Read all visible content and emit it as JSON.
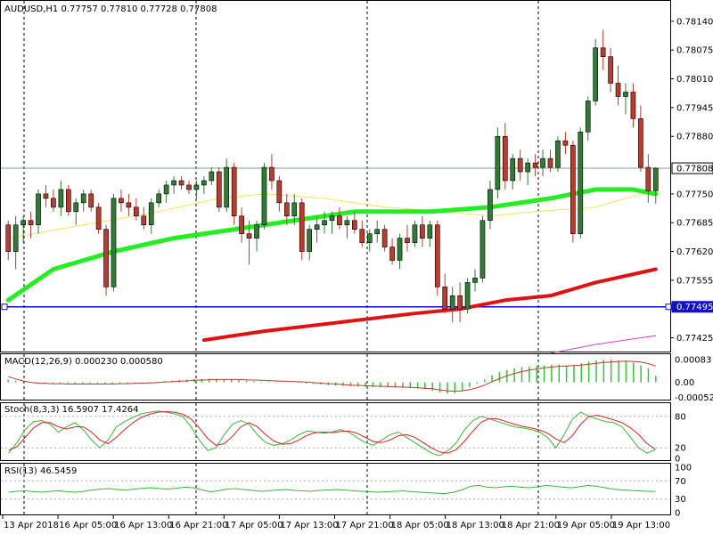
{
  "header": {
    "symbol_timeframe": "AUDUSD,H1",
    "ohlc": "0.77757 0.77810 0.77728 0.77808"
  },
  "colors": {
    "bull": "#2e7d32",
    "bear": "#c0392b",
    "candle_outline": "#000000",
    "ma_fast": "#f2e35a",
    "ma_mid": "#22ee22",
    "ma_slow": "#e11111",
    "ma_magenta": "#d040d0",
    "support_line": "#1010c8",
    "price_line": "#7f9f7f",
    "macd_hist": "#32c832",
    "macd_signal": "#c0392b",
    "stoch_main": "#33bb33",
    "stoch_signal": "#dd2222",
    "rsi": "#33bb33"
  },
  "chart_data": [
    {
      "type": "candlestick",
      "pane": "price",
      "ylim": [
        0.774,
        0.7818
      ],
      "y_ticks": [
        "0.78140",
        "0.78075",
        "0.78010",
        "0.77945",
        "0.77880",
        "0.77750",
        "0.77685",
        "0.77620",
        "0.77555",
        "0.77425"
      ],
      "current_price_label": "0.77808",
      "current_price": 0.77808,
      "support_label": "0.77495",
      "support_level": 0.77495,
      "candles": [
        [
          0.7768,
          0.7769,
          0.776,
          0.7762
        ],
        [
          0.7762,
          0.777,
          0.7758,
          0.7768
        ],
        [
          0.7768,
          0.777,
          0.7764,
          0.7769
        ],
        [
          0.7769,
          0.7771,
          0.7765,
          0.7768
        ],
        [
          0.7768,
          0.7776,
          0.7766,
          0.7775
        ],
        [
          0.7775,
          0.7777,
          0.7772,
          0.7774
        ],
        [
          0.7774,
          0.7776,
          0.7771,
          0.7772
        ],
        [
          0.7772,
          0.7778,
          0.777,
          0.7776
        ],
        [
          0.7776,
          0.7777,
          0.777,
          0.7771
        ],
        [
          0.7771,
          0.7774,
          0.7768,
          0.7773
        ],
        [
          0.7773,
          0.7776,
          0.7771,
          0.7775
        ],
        [
          0.7775,
          0.7776,
          0.7771,
          0.7772
        ],
        [
          0.7772,
          0.7773,
          0.7766,
          0.7767
        ],
        [
          0.7767,
          0.7768,
          0.7752,
          0.7754
        ],
        [
          0.7754,
          0.7775,
          0.7753,
          0.7774
        ],
        [
          0.7774,
          0.7776,
          0.7771,
          0.7773
        ],
        [
          0.7773,
          0.7775,
          0.777,
          0.7772
        ],
        [
          0.7772,
          0.7774,
          0.7769,
          0.777
        ],
        [
          0.777,
          0.7772,
          0.7767,
          0.7768
        ],
        [
          0.7768,
          0.7774,
          0.7766,
          0.7773
        ],
        [
          0.7773,
          0.7776,
          0.7772,
          0.7775
        ],
        [
          0.7775,
          0.7778,
          0.7773,
          0.7777
        ],
        [
          0.7777,
          0.7779,
          0.7775,
          0.7778
        ],
        [
          0.7778,
          0.7779,
          0.7776,
          0.7777
        ],
        [
          0.7777,
          0.7778,
          0.7775,
          0.7776
        ],
        [
          0.7776,
          0.7778,
          0.7774,
          0.7777
        ],
        [
          0.7777,
          0.7779,
          0.7775,
          0.7778
        ],
        [
          0.7778,
          0.7781,
          0.7777,
          0.778
        ],
        [
          0.778,
          0.7781,
          0.7771,
          0.7772
        ],
        [
          0.7772,
          0.7783,
          0.7771,
          0.7781
        ],
        [
          0.7781,
          0.7782,
          0.7768,
          0.777
        ],
        [
          0.777,
          0.7772,
          0.7764,
          0.7766
        ],
        [
          0.7766,
          0.7769,
          0.7759,
          0.7765
        ],
        [
          0.7765,
          0.7769,
          0.7762,
          0.7768
        ],
        [
          0.7768,
          0.7782,
          0.7767,
          0.7781
        ],
        [
          0.7781,
          0.7784,
          0.7776,
          0.7778
        ],
        [
          0.7778,
          0.7779,
          0.7771,
          0.7773
        ],
        [
          0.7773,
          0.7775,
          0.7768,
          0.777
        ],
        [
          0.777,
          0.7775,
          0.7768,
          0.7773
        ],
        [
          0.7773,
          0.7774,
          0.776,
          0.7762
        ],
        [
          0.7762,
          0.7768,
          0.776,
          0.7767
        ],
        [
          0.7767,
          0.777,
          0.7764,
          0.7768
        ],
        [
          0.7768,
          0.7771,
          0.7766,
          0.7769
        ],
        [
          0.7769,
          0.7771,
          0.7766,
          0.777
        ],
        [
          0.777,
          0.7772,
          0.7767,
          0.7768
        ],
        [
          0.7768,
          0.777,
          0.7765,
          0.7769
        ],
        [
          0.7769,
          0.7771,
          0.7766,
          0.7767
        ],
        [
          0.7767,
          0.7769,
          0.7763,
          0.7764
        ],
        [
          0.7764,
          0.7767,
          0.7762,
          0.7766
        ],
        [
          0.7766,
          0.7769,
          0.7764,
          0.7767
        ],
        [
          0.7767,
          0.7768,
          0.7762,
          0.7763
        ],
        [
          0.7763,
          0.7765,
          0.7759,
          0.776
        ],
        [
          0.776,
          0.7766,
          0.7758,
          0.7765
        ],
        [
          0.7765,
          0.7768,
          0.7762,
          0.7764
        ],
        [
          0.7764,
          0.7769,
          0.7763,
          0.7768
        ],
        [
          0.7768,
          0.777,
          0.7763,
          0.7765
        ],
        [
          0.7765,
          0.7769,
          0.7763,
          0.7768
        ],
        [
          0.7768,
          0.7769,
          0.7752,
          0.7754
        ],
        [
          0.7754,
          0.7757,
          0.7748,
          0.7749
        ],
        [
          0.7749,
          0.7754,
          0.7746,
          0.7752
        ],
        [
          0.7752,
          0.7755,
          0.7746,
          0.7749
        ],
        [
          0.7749,
          0.7756,
          0.7748,
          0.7755
        ],
        [
          0.7755,
          0.7758,
          0.7753,
          0.7756
        ],
        [
          0.7756,
          0.777,
          0.7755,
          0.7769
        ],
        [
          0.7769,
          0.7778,
          0.7767,
          0.7776
        ],
        [
          0.7776,
          0.779,
          0.7774,
          0.7788
        ],
        [
          0.7788,
          0.7791,
          0.7776,
          0.7778
        ],
        [
          0.7778,
          0.7784,
          0.7776,
          0.7783
        ],
        [
          0.7783,
          0.7785,
          0.7778,
          0.778
        ],
        [
          0.778,
          0.7783,
          0.7777,
          0.7782
        ],
        [
          0.7782,
          0.7784,
          0.7779,
          0.7781
        ],
        [
          0.7781,
          0.7785,
          0.7779,
          0.7783
        ],
        [
          0.7783,
          0.7785,
          0.778,
          0.7781
        ],
        [
          0.7781,
          0.7788,
          0.778,
          0.7787
        ],
        [
          0.7787,
          0.7789,
          0.7784,
          0.7786
        ],
        [
          0.7786,
          0.7787,
          0.7764,
          0.7766
        ],
        [
          0.7766,
          0.779,
          0.7765,
          0.7789
        ],
        [
          0.7789,
          0.7797,
          0.7787,
          0.7796
        ],
        [
          0.7796,
          0.781,
          0.7795,
          0.7808
        ],
        [
          0.7808,
          0.7812,
          0.7803,
          0.7806
        ],
        [
          0.7806,
          0.7808,
          0.7798,
          0.78
        ],
        [
          0.78,
          0.7804,
          0.7795,
          0.7797
        ],
        [
          0.7797,
          0.78,
          0.7793,
          0.7798
        ],
        [
          0.7798,
          0.78,
          0.779,
          0.7792
        ],
        [
          0.7792,
          0.7795,
          0.778,
          0.7781
        ],
        [
          0.7781,
          0.7784,
          0.7773,
          0.77757
        ],
        [
          0.77757,
          0.7781,
          0.77728,
          0.77808
        ]
      ],
      "ma_fast": [
        [
          0,
          0.7765
        ],
        [
          10,
          0.7768
        ],
        [
          20,
          0.7771
        ],
        [
          28,
          0.7774
        ],
        [
          34,
          0.7775
        ],
        [
          42,
          0.7774
        ],
        [
          50,
          0.7772
        ],
        [
          58,
          0.7771
        ],
        [
          64,
          0.777
        ],
        [
          70,
          0.7771
        ],
        [
          78,
          0.7772
        ],
        [
          84,
          0.7775
        ],
        [
          86,
          0.7775
        ]
      ],
      "ma_mid": [
        [
          0,
          0.7751
        ],
        [
          6,
          0.7758
        ],
        [
          14,
          0.7762
        ],
        [
          22,
          0.7765
        ],
        [
          30,
          0.7767
        ],
        [
          38,
          0.7769
        ],
        [
          46,
          0.7771
        ],
        [
          56,
          0.7771
        ],
        [
          64,
          0.7772
        ],
        [
          72,
          0.7774
        ],
        [
          78,
          0.7776
        ],
        [
          83,
          0.7776
        ],
        [
          86,
          0.7775
        ]
      ],
      "ma_slow": [
        [
          26,
          0.7742
        ],
        [
          34,
          0.7744
        ],
        [
          44,
          0.7746
        ],
        [
          54,
          0.7748
        ],
        [
          60,
          0.7749
        ],
        [
          66,
          0.7751
        ],
        [
          72,
          0.7752
        ],
        [
          78,
          0.7755
        ],
        [
          86,
          0.7758
        ]
      ],
      "ma_magenta": [
        [
          72,
          0.7739
        ],
        [
          78,
          0.7741
        ],
        [
          86,
          0.7743
        ]
      ]
    },
    {
      "type": "bar",
      "pane": "macd",
      "title": "MACD(12,26,9) 0.000230 0.000580",
      "y_ticks": [
        "0.00083",
        "0.00",
        "-0.000528"
      ],
      "ylim": [
        -0.00055,
        0.0009
      ],
      "histogram": [
        0.0001,
        6e-05,
        2e-05,
        -1e-05,
        -2e-05,
        -3e-05,
        -3e-05,
        -4e-05,
        -4e-05,
        -5e-05,
        -5e-05,
        -4e-05,
        -4e-05,
        -6e-05,
        -5e-05,
        -4e-05,
        -3e-05,
        -2e-05,
        -1e-05,
        1e-05,
        2e-05,
        4e-05,
        6e-05,
        8e-05,
        0.0001,
        0.00012,
        0.00012,
        0.00013,
        0.00012,
        0.00011,
        0.0001,
        8e-05,
        6e-05,
        4e-05,
        3e-05,
        3e-05,
        2e-05,
        1e-05,
        0.0,
        -2e-05,
        -4e-05,
        -6e-05,
        -8e-05,
        -0.0001,
        -0.00012,
        -0.00013,
        -0.00014,
        -0.00015,
        -0.00016,
        -0.00016,
        -0.00017,
        -0.00018,
        -0.00019,
        -0.0002,
        -0.00021,
        -0.00022,
        -0.00024,
        -0.0003,
        -0.00036,
        -0.0004,
        -0.00038,
        -0.0003,
        -0.00018,
        -5e-05,
        0.0001,
        0.00025,
        0.00036,
        0.00044,
        0.0005,
        0.00054,
        0.00056,
        0.00058,
        0.0006,
        0.00062,
        0.00063,
        0.00058,
        0.00062,
        0.00068,
        0.00074,
        0.00078,
        0.0008,
        0.0008,
        0.00078,
        0.00076,
        0.0007,
        0.0006,
        0.0005,
        0.00023
      ],
      "signal": [
        0.0002,
        0.00012,
        5e-05,
        0.0,
        -3e-05,
        -4e-05,
        -5e-05,
        -5e-05,
        -6e-05,
        -6e-05,
        -6e-05,
        -6e-05,
        -6e-05,
        -6e-05,
        -6e-05,
        -5e-05,
        -5e-05,
        -4e-05,
        -3e-05,
        -2e-05,
        -1e-05,
        1e-05,
        2e-05,
        4e-05,
        5e-05,
        7e-05,
        8e-05,
        9e-05,
        0.0001,
        0.0001,
        0.0001,
        0.0001,
        9e-05,
        8e-05,
        7e-05,
        6e-05,
        5e-05,
        4e-05,
        3e-05,
        2e-05,
        1e-05,
        -1e-05,
        -3e-05,
        -5e-05,
        -6e-05,
        -8e-05,
        -0.0001,
        -0.00011,
        -0.00012,
        -0.00013,
        -0.00014,
        -0.00015,
        -0.00016,
        -0.00017,
        -0.00018,
        -0.00019,
        -0.00021,
        -0.00023,
        -0.00027,
        -0.0003,
        -0.00032,
        -0.0003,
        -0.00026,
        -0.00019,
        -0.0001,
        2e-05,
        0.00013,
        0.00023,
        0.00031,
        0.00038,
        0.00043,
        0.00047,
        0.00051,
        0.00054,
        0.00057,
        0.00058,
        0.00059,
        0.00061,
        0.00064,
        0.00067,
        0.0007,
        0.00072,
        0.00074,
        0.00075,
        0.00074,
        0.00072,
        0.00066,
        0.00058
      ]
    },
    {
      "type": "line",
      "pane": "stochastic",
      "title": "Stoch(8,3,3) 16.5907 17.4264",
      "y_ticks": [
        "80",
        "20",
        "0"
      ],
      "ylim": [
        0,
        100
      ],
      "levels": [
        80,
        20
      ],
      "main": [
        10,
        30,
        55,
        70,
        72,
        65,
        50,
        60,
        68,
        55,
        35,
        20,
        35,
        60,
        70,
        78,
        85,
        88,
        90,
        88,
        85,
        80,
        60,
        35,
        15,
        20,
        45,
        65,
        72,
        65,
        45,
        30,
        25,
        28,
        35,
        45,
        52,
        50,
        48,
        50,
        55,
        50,
        40,
        30,
        25,
        35,
        45,
        50,
        40,
        30,
        20,
        10,
        5,
        15,
        30,
        55,
        72,
        80,
        75,
        70,
        65,
        60,
        58,
        55,
        50,
        40,
        20,
        45,
        75,
        88,
        80,
        75,
        70,
        68,
        60,
        40,
        20,
        10,
        16.5907
      ],
      "signal": [
        15,
        22,
        40,
        58,
        68,
        68,
        60,
        56,
        60,
        60,
        50,
        35,
        28,
        40,
        55,
        68,
        78,
        84,
        88,
        89,
        88,
        84,
        75,
        58,
        38,
        25,
        28,
        42,
        60,
        68,
        60,
        45,
        33,
        27,
        28,
        35,
        44,
        49,
        50,
        49,
        51,
        52,
        48,
        40,
        32,
        30,
        35,
        43,
        45,
        40,
        30,
        20,
        12,
        10,
        17,
        33,
        52,
        69,
        76,
        75,
        70,
        65,
        61,
        58,
        54,
        48,
        37,
        30,
        43,
        65,
        80,
        82,
        78,
        73,
        68,
        58,
        45,
        28,
        17.4264
      ]
    },
    {
      "type": "line",
      "pane": "rsi",
      "title": "RSI(13) 46.5459",
      "y_ticks": [
        "100",
        "70",
        "30",
        "0"
      ],
      "ylim": [
        0,
        100
      ],
      "levels": [
        70,
        30
      ],
      "values": [
        45,
        47,
        48,
        46,
        45,
        47,
        48,
        46,
        45,
        47,
        50,
        52,
        53,
        51,
        50,
        52,
        54,
        55,
        53,
        52,
        54,
        56,
        55,
        50,
        46,
        48,
        52,
        53,
        51,
        49,
        47,
        48,
        50,
        51,
        49,
        48,
        47,
        49,
        50,
        51,
        50,
        48,
        47,
        46,
        45,
        46,
        47,
        48,
        46,
        45,
        44,
        43,
        42,
        45,
        50,
        58,
        60,
        56,
        55,
        57,
        58,
        56,
        55,
        57,
        60,
        58,
        56,
        55,
        57,
        60,
        58,
        55,
        52,
        50,
        49,
        48,
        47,
        46.5459
      ]
    },
    {
      "type": "x-axis",
      "tick_labels": [
        "13 Apr 2018",
        "16 Apr 05:00",
        "16 Apr 13:00",
        "16 Apr 21:00",
        "17 Apr 05:00",
        "17 Apr 13:00",
        "17 Apr 21:00",
        "18 Apr 05:00",
        "18 Apr 13:00",
        "18 Apr 21:00",
        "19 Apr 05:00",
        "19 Apr 13:00"
      ]
    }
  ]
}
